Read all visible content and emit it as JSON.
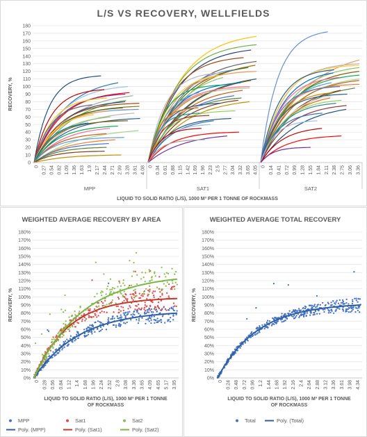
{
  "top": {
    "title": "L/S VS RECOVERY, WELLFIELDS",
    "ylabel": "RECOVERY, %",
    "xlabel": "LIQUID TO SOLID RATIO (L/S), 1000 M³ PER 1 TONNE OF ROCKMASS",
    "yticks": [
      "0",
      "10",
      "20",
      "30",
      "40",
      "50",
      "60",
      "70",
      "80",
      "90",
      "100",
      "110",
      "120",
      "130",
      "140",
      "150",
      "160",
      "170",
      "180"
    ],
    "groups": [
      {
        "name": "MPP",
        "ticks": [
          "0",
          "0.27",
          "0.54",
          "0.82",
          "1.09",
          "1.36",
          "1.63",
          "1.9",
          "2.17",
          "2.44",
          "2.71",
          "2.99",
          "3.28",
          "3.61",
          "4.08"
        ]
      },
      {
        "name": "SAT1",
        "ticks": [
          "0",
          "0.34",
          "0.61",
          "0.88",
          "1.15",
          "1.42",
          "1.69",
          "1.96",
          "2.23",
          "2.5",
          "2.77",
          "3.04",
          "3.32",
          "3.65",
          "4.05"
        ]
      },
      {
        "name": "SAT2",
        "ticks": [
          "0",
          "0.14",
          "0.41",
          "0.72",
          "0.99",
          "1.28",
          "1.55",
          "1.84",
          "2.11",
          "2.38",
          "2.75",
          "3.06",
          "3.36"
        ]
      }
    ]
  },
  "bottom_left": {
    "title": "WEIGHTED AVERAGE RECOVERY BY AREA",
    "ylabel": "RECOVERY, %",
    "xlabel_line1": "LIQUID TO SOLID RATIO (L/S), 1000 M³ PER 1 TONNE",
    "xlabel_line2": "OF ROCKMASS",
    "yticks": [
      "0%",
      "10%",
      "20%",
      "30%",
      "40%",
      "50%",
      "60%",
      "70%",
      "80%",
      "90%",
      "100%",
      "110%",
      "120%",
      "130%",
      "140%",
      "150%",
      "160%",
      "170%",
      "180%"
    ],
    "xticks": [
      "0",
      "0.28",
      "0.56",
      "0.84",
      "1.12",
      "1.4",
      "1.68",
      "1.96",
      "2.24",
      "2.52",
      "2.8",
      "3.08",
      "3.36",
      "3.65",
      "4.09",
      "4.65",
      "5.17",
      "3.95"
    ],
    "legend": [
      {
        "label": "MPP",
        "kind": "dot",
        "color": "#4472C4"
      },
      {
        "label": "Sat1",
        "kind": "dot",
        "color": "#E24A4A"
      },
      {
        "label": "Sat2",
        "kind": "dot",
        "color": "#8DBE4D"
      },
      {
        "label": "Poly. (MPP)",
        "kind": "line",
        "color": "#2E5F9E"
      },
      {
        "label": "Poly. (Sat1)",
        "kind": "line",
        "color": "#C0392B"
      },
      {
        "label": "Poly. (Sat2)",
        "kind": "line",
        "color": "#7AB648"
      }
    ]
  },
  "bottom_right": {
    "title": "WEIGHTED AVERAGE TOTAL RECOVERY",
    "ylabel": "RECOVERY, %",
    "xlabel_line1": "LIQUID TO SOLID RATIO (L/S), 1000 M³ PER 1 TONNE",
    "xlabel_line2": "OF ROCKMASS",
    "yticks": [
      "0%",
      "10%",
      "20%",
      "30%",
      "40%",
      "50%",
      "60%",
      "70%",
      "80%",
      "90%",
      "100%",
      "110%",
      "120%",
      "130%",
      "140%",
      "150%",
      "160%",
      "170%",
      "180%"
    ],
    "xticks": [
      "0",
      "0.24",
      "0.48",
      "0.72",
      "0.96",
      "1.2",
      "1.44",
      "1.68",
      "1.92",
      "2.16",
      "2.4",
      "2.64",
      "2.88",
      "3.12",
      "3.36",
      "3.61",
      "3.98",
      "4.34"
    ],
    "legend": [
      {
        "label": "Total",
        "kind": "dot",
        "color": "#4472C4"
      },
      {
        "label": "Poly. (Total)",
        "kind": "line",
        "color": "#2E5F9E"
      }
    ]
  },
  "chart_data": [
    {
      "type": "line",
      "title": "L/S VS RECOVERY, WELLFIELDS",
      "xlabel": "LIQUID TO SOLID RATIO (L/S), 1000 M³ PER 1 TONNE OF ROCKMASS",
      "ylabel": "RECOVERY, %",
      "ylim": [
        0,
        180
      ],
      "categories": [
        "MPP",
        "SAT1",
        "SAT2"
      ],
      "grid": true,
      "series_final_values": {
        "MPP": [
          114,
          105,
          100,
          96,
          92,
          90,
          88,
          85,
          82,
          80,
          78,
          76,
          74,
          72,
          70,
          68,
          65,
          63,
          60,
          58,
          55,
          52,
          48,
          45,
          42,
          38,
          33,
          30,
          25,
          20,
          15,
          10
        ],
        "SAT1": [
          166,
          155,
          148,
          138,
          133,
          128,
          125,
          122,
          120,
          118,
          115,
          112,
          110,
          108,
          105,
          102,
          100,
          98,
          95,
          92,
          90,
          88,
          85,
          82,
          80,
          78,
          75,
          72,
          68,
          65,
          62,
          58,
          55,
          50,
          45,
          40,
          35,
          30
        ],
        "SAT2": [
          172,
          135,
          130,
          128,
          125,
          122,
          120,
          118,
          115,
          112,
          110,
          108,
          105,
          103,
          100,
          98,
          95,
          92,
          90,
          88,
          85,
          82,
          78,
          75,
          70,
          65,
          55,
          45,
          35,
          20
        ]
      }
    },
    {
      "type": "scatter",
      "title": "WEIGHTED AVERAGE RECOVERY BY AREA",
      "xlabel": "LIQUID TO SOLID RATIO (L/S), 1000 M³ PER 1 TONNE OF ROCKMASS",
      "ylabel": "RECOVERY, %",
      "ylim": [
        0,
        180
      ],
      "series": [
        {
          "name": "MPP",
          "trend_plateau": 80,
          "x_max": 4.2
        },
        {
          "name": "Sat1",
          "trend_plateau": 98,
          "x_max": 4.2
        },
        {
          "name": "Sat2",
          "trend_plateau": 122,
          "x_max": 4.2
        }
      ],
      "trendlines": [
        "Poly. (MPP)",
        "Poly. (Sat1)",
        "Poly. (Sat2)"
      ],
      "legend": "bottom"
    },
    {
      "type": "scatter",
      "title": "WEIGHTED AVERAGE TOTAL RECOVERY",
      "xlabel": "LIQUID TO SOLID RATIO (L/S), 1000 M³ PER 1 TONNE OF ROCKMASS",
      "ylabel": "RECOVERY, %",
      "ylim": [
        0,
        180
      ],
      "series": [
        {
          "name": "Total",
          "trend_plateau": 90,
          "x_max": 4.5
        }
      ],
      "trendlines": [
        "Poly. (Total)"
      ],
      "legend": "bottom"
    }
  ]
}
